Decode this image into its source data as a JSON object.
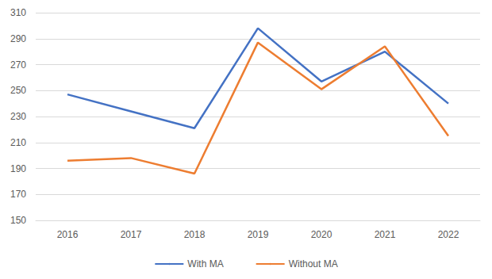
{
  "chart_data": {
    "type": "line",
    "categories": [
      "2016",
      "2017",
      "2018",
      "2019",
      "2020",
      "2021",
      "2022"
    ],
    "series": [
      {
        "name": "With MA",
        "color": "#4472c4",
        "values": [
          247,
          234,
          221,
          298,
          257,
          280,
          240
        ]
      },
      {
        "name": "Without MA",
        "color": "#ed7d31",
        "values": [
          196,
          198,
          186,
          287,
          251,
          284,
          215
        ]
      }
    ],
    "ylim": [
      150,
      310
    ],
    "yticks": [
      150,
      170,
      190,
      210,
      230,
      250,
      270,
      290,
      310
    ],
    "grid": true,
    "legend": "bottom",
    "marker": "none",
    "line_style": "solid"
  }
}
